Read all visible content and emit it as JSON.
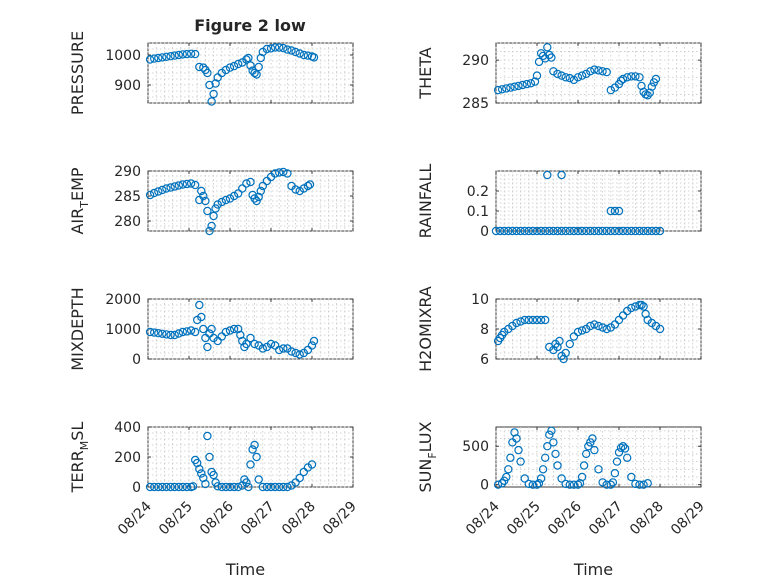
{
  "figure": {
    "title": "Figure 2 low"
  },
  "x_axis": {
    "label": "Time",
    "xlim": [
      0,
      5
    ],
    "ticks": [
      0,
      1,
      2,
      3,
      4,
      5
    ],
    "tick_labels": [
      "08/24",
      "08/25",
      "08/26",
      "08/27",
      "08/28",
      "08/29"
    ]
  },
  "colors": {
    "marker": "#0072BD",
    "axes": "#262626",
    "grid": "#c8c8c8"
  },
  "chart_data": [
    {
      "id": "pressure",
      "type": "scatter",
      "ylabel": "PRESSURE",
      "ylim": [
        840,
        1040
      ],
      "yticks": [
        900,
        1000
      ],
      "ytick_labels": [
        "900",
        "1000"
      ],
      "grid": true,
      "x": [
        0.05,
        0.15,
        0.25,
        0.35,
        0.45,
        0.55,
        0.65,
        0.75,
        0.85,
        0.95,
        1.05,
        1.15,
        1.25,
        1.35,
        1.4,
        1.45,
        1.5,
        1.55,
        1.6,
        1.65,
        1.7,
        1.8,
        1.9,
        2.0,
        2.1,
        2.2,
        2.3,
        2.4,
        2.45,
        2.5,
        2.55,
        2.6,
        2.65,
        2.7,
        2.75,
        2.8,
        2.9,
        3.0,
        3.1,
        3.2,
        3.3,
        3.4,
        3.5,
        3.6,
        3.7,
        3.8,
        3.9,
        4.0,
        4.05
      ],
      "y": [
        985,
        988,
        990,
        992,
        994,
        996,
        998,
        1000,
        1002,
        1003,
        1004,
        1003,
        960,
        958,
        950,
        940,
        900,
        845,
        870,
        905,
        925,
        940,
        950,
        958,
        963,
        970,
        975,
        985,
        990,
        965,
        948,
        940,
        935,
        960,
        990,
        1010,
        1020,
        1022,
        1025,
        1025,
        1023,
        1018,
        1015,
        1010,
        1005,
        1000,
        998,
        995,
        992
      ]
    },
    {
      "id": "theta",
      "type": "scatter",
      "ylabel": "THETA",
      "ylim": [
        285,
        292
      ],
      "yticks": [
        285,
        290
      ],
      "ytick_labels": [
        "285",
        "290"
      ],
      "grid": true,
      "x": [
        0.05,
        0.15,
        0.25,
        0.35,
        0.45,
        0.55,
        0.65,
        0.75,
        0.85,
        0.95,
        1.0,
        1.05,
        1.1,
        1.15,
        1.2,
        1.25,
        1.3,
        1.35,
        1.4,
        1.5,
        1.6,
        1.7,
        1.8,
        1.9,
        2.0,
        2.1,
        2.2,
        2.3,
        2.4,
        2.5,
        2.6,
        2.7,
        2.8,
        2.9,
        3.0,
        3.05,
        3.1,
        3.2,
        3.3,
        3.4,
        3.5,
        3.55,
        3.6,
        3.65,
        3.7,
        3.75,
        3.8,
        3.85,
        3.9
      ],
      "y": [
        286.5,
        286.6,
        286.7,
        286.8,
        286.9,
        287.0,
        287.1,
        287.2,
        287.3,
        287.5,
        288.2,
        289.8,
        290.8,
        290.5,
        290.2,
        291.5,
        290.6,
        290.3,
        288.7,
        288.4,
        288.2,
        288.0,
        287.9,
        287.7,
        288.0,
        288.2,
        288.4,
        288.7,
        288.9,
        288.8,
        288.7,
        288.6,
        286.5,
        286.8,
        287.2,
        287.6,
        287.8,
        288.0,
        288.1,
        288.1,
        288.0,
        287.0,
        286.3,
        286.0,
        285.9,
        286.2,
        286.9,
        287.4,
        287.8
      ]
    },
    {
      "id": "air_temp",
      "type": "scatter",
      "ylabel": "AIR_TEMP",
      "ylim": [
        278,
        290
      ],
      "yticks": [
        280,
        285,
        290
      ],
      "ytick_labels": [
        "280",
        "285",
        "290"
      ],
      "grid": true,
      "x": [
        0.05,
        0.15,
        0.25,
        0.35,
        0.45,
        0.55,
        0.65,
        0.75,
        0.85,
        0.95,
        1.05,
        1.15,
        1.25,
        1.3,
        1.35,
        1.4,
        1.45,
        1.5,
        1.55,
        1.6,
        1.65,
        1.7,
        1.8,
        1.9,
        2.0,
        2.1,
        2.2,
        2.3,
        2.4,
        2.5,
        2.55,
        2.6,
        2.65,
        2.7,
        2.75,
        2.8,
        2.9,
        3.0,
        3.1,
        3.2,
        3.3,
        3.4,
        3.5,
        3.6,
        3.7,
        3.8,
        3.9,
        3.95
      ],
      "y": [
        285.2,
        285.6,
        285.9,
        286.2,
        286.5,
        286.7,
        286.9,
        287.1,
        287.3,
        287.4,
        287.5,
        287.2,
        284.2,
        286.0,
        285.0,
        284.0,
        282.0,
        278.0,
        279.0,
        281.0,
        282.5,
        283.3,
        283.8,
        284.2,
        284.5,
        285.0,
        285.5,
        286.5,
        287.5,
        287.8,
        285.2,
        284.5,
        284.0,
        284.8,
        286.0,
        287.0,
        288.0,
        288.8,
        289.5,
        289.7,
        289.8,
        289.5,
        287.0,
        286.3,
        286.0,
        286.5,
        287.0,
        287.3
      ]
    },
    {
      "id": "rainfall",
      "type": "scatter",
      "ylabel": "RAINFALL",
      "ylim": [
        0,
        0.3
      ],
      "yticks": [
        0,
        0.1,
        0.2
      ],
      "ytick_labels": [
        "0",
        "0.1",
        "0.2"
      ],
      "grid": true,
      "x": [
        0.0,
        0.1,
        0.2,
        0.3,
        0.4,
        0.5,
        0.6,
        0.7,
        0.8,
        0.9,
        1.0,
        1.1,
        1.2,
        1.3,
        1.4,
        1.5,
        1.6,
        1.7,
        1.8,
        1.9,
        2.0,
        2.1,
        2.2,
        2.3,
        2.4,
        2.5,
        2.6,
        2.7,
        2.8,
        2.9,
        3.0,
        3.1,
        3.2,
        3.3,
        3.4,
        3.5,
        3.6,
        3.7,
        3.8,
        3.9,
        4.0,
        1.25,
        1.6,
        2.8,
        2.9,
        3.0
      ],
      "y": [
        0,
        0,
        0,
        0,
        0,
        0,
        0,
        0,
        0,
        0,
        0,
        0,
        0,
        0,
        0,
        0,
        0,
        0,
        0,
        0,
        0,
        0,
        0,
        0,
        0,
        0,
        0,
        0,
        0,
        0,
        0,
        0,
        0,
        0,
        0,
        0,
        0,
        0,
        0,
        0,
        0,
        0.28,
        0.28,
        0.1,
        0.1,
        0.1
      ]
    },
    {
      "id": "mixdepth",
      "type": "scatter",
      "ylabel": "MIXDEPTH",
      "ylim": [
        0,
        2000
      ],
      "yticks": [
        0,
        1000,
        2000
      ],
      "ytick_labels": [
        "0",
        "1000",
        "2000"
      ],
      "grid": true,
      "x": [
        0.05,
        0.15,
        0.25,
        0.35,
        0.45,
        0.55,
        0.65,
        0.75,
        0.85,
        0.95,
        1.05,
        1.15,
        1.2,
        1.25,
        1.3,
        1.35,
        1.4,
        1.45,
        1.5,
        1.55,
        1.6,
        1.7,
        1.8,
        1.9,
        2.0,
        2.1,
        2.2,
        2.25,
        2.3,
        2.35,
        2.4,
        2.5,
        2.6,
        2.7,
        2.8,
        2.9,
        3.0,
        3.1,
        3.2,
        3.3,
        3.4,
        3.5,
        3.6,
        3.7,
        3.8,
        3.9,
        4.0,
        4.05
      ],
      "y": [
        900,
        880,
        860,
        840,
        820,
        800,
        800,
        850,
        900,
        920,
        950,
        900,
        1300,
        1800,
        1400,
        1000,
        700,
        400,
        850,
        1000,
        700,
        600,
        750,
        900,
        950,
        1000,
        1000,
        800,
        600,
        400,
        500,
        700,
        500,
        450,
        350,
        400,
        500,
        450,
        300,
        350,
        350,
        250,
        200,
        150,
        200,
        300,
        450,
        600
      ]
    },
    {
      "id": "h2omixra",
      "type": "scatter",
      "ylabel": "H2OMIXRA",
      "ylim": [
        6,
        10
      ],
      "yticks": [
        6,
        8,
        10
      ],
      "ytick_labels": [
        "6",
        "8",
        "10"
      ],
      "grid": true,
      "x": [
        0.05,
        0.1,
        0.15,
        0.2,
        0.3,
        0.4,
        0.5,
        0.6,
        0.7,
        0.8,
        0.9,
        1.0,
        1.1,
        1.2,
        1.3,
        1.4,
        1.45,
        1.5,
        1.55,
        1.6,
        1.65,
        1.7,
        1.8,
        1.9,
        2.0,
        2.1,
        2.2,
        2.3,
        2.4,
        2.5,
        2.6,
        2.7,
        2.8,
        2.9,
        3.0,
        3.1,
        3.2,
        3.3,
        3.4,
        3.5,
        3.55,
        3.6,
        3.65,
        3.7,
        3.8,
        3.9,
        4.0
      ],
      "y": [
        7.2,
        7.4,
        7.6,
        7.8,
        8.0,
        8.2,
        8.4,
        8.5,
        8.6,
        8.6,
        8.6,
        8.6,
        8.6,
        8.6,
        6.8,
        6.6,
        7.0,
        6.8,
        7.2,
        6.2,
        6.0,
        6.4,
        7.0,
        7.5,
        7.8,
        7.9,
        8.0,
        8.2,
        8.3,
        8.2,
        8.1,
        8.0,
        8.1,
        8.3,
        8.6,
        8.9,
        9.2,
        9.4,
        9.5,
        9.6,
        9.6,
        9.5,
        9.0,
        8.6,
        8.4,
        8.2,
        8.0
      ]
    },
    {
      "id": "terr_msl",
      "type": "scatter",
      "ylabel": "TERR_MSL",
      "ylim": [
        0,
        400
      ],
      "yticks": [
        0,
        200,
        400
      ],
      "ytick_labels": [
        "0",
        "200",
        "400"
      ],
      "grid": true,
      "x": [
        0.05,
        0.15,
        0.25,
        0.35,
        0.45,
        0.55,
        0.65,
        0.75,
        0.85,
        0.95,
        1.05,
        1.1,
        1.15,
        1.2,
        1.25,
        1.3,
        1.35,
        1.4,
        1.45,
        1.5,
        1.55,
        1.6,
        1.65,
        1.7,
        1.8,
        1.9,
        2.0,
        2.1,
        2.2,
        2.3,
        2.35,
        2.4,
        2.45,
        2.5,
        2.55,
        2.6,
        2.65,
        2.7,
        2.8,
        2.9,
        3.0,
        3.1,
        3.2,
        3.3,
        3.4,
        3.5,
        3.6,
        3.7,
        3.8,
        3.9,
        4.0
      ],
      "y": [
        0,
        0,
        0,
        0,
        0,
        0,
        0,
        0,
        0,
        0,
        0,
        5,
        180,
        160,
        120,
        90,
        60,
        20,
        340,
        200,
        100,
        80,
        30,
        5,
        0,
        0,
        0,
        0,
        0,
        10,
        50,
        30,
        0,
        150,
        250,
        280,
        200,
        50,
        0,
        0,
        0,
        0,
        0,
        0,
        0,
        10,
        30,
        60,
        100,
        130,
        150
      ]
    },
    {
      "id": "sun_flux",
      "type": "scatter",
      "ylabel": "SUN_FLUX",
      "ylim": [
        -30,
        750
      ],
      "yticks": [
        0,
        500
      ],
      "ytick_labels": [
        "0",
        "500"
      ],
      "grid": true,
      "x": [
        0.05,
        0.15,
        0.2,
        0.25,
        0.3,
        0.35,
        0.4,
        0.45,
        0.5,
        0.55,
        0.6,
        0.7,
        0.8,
        0.9,
        1.0,
        1.05,
        1.1,
        1.15,
        1.2,
        1.25,
        1.3,
        1.35,
        1.4,
        1.45,
        1.5,
        1.6,
        1.7,
        1.8,
        1.9,
        2.0,
        2.05,
        2.1,
        2.15,
        2.2,
        2.25,
        2.3,
        2.35,
        2.4,
        2.5,
        2.6,
        2.7,
        2.8,
        2.85,
        2.9,
        2.95,
        3.0,
        3.05,
        3.1,
        3.15,
        3.2,
        3.3,
        3.4,
        3.5,
        3.6,
        3.7
      ],
      "y": [
        0,
        20,
        50,
        100,
        200,
        350,
        550,
        680,
        600,
        450,
        300,
        80,
        10,
        0,
        0,
        20,
        80,
        200,
        350,
        500,
        650,
        700,
        550,
        400,
        250,
        80,
        10,
        0,
        0,
        0,
        20,
        100,
        250,
        400,
        500,
        550,
        600,
        450,
        200,
        30,
        0,
        0,
        30,
        150,
        300,
        420,
        480,
        500,
        470,
        350,
        100,
        10,
        0,
        0,
        20
      ]
    }
  ]
}
